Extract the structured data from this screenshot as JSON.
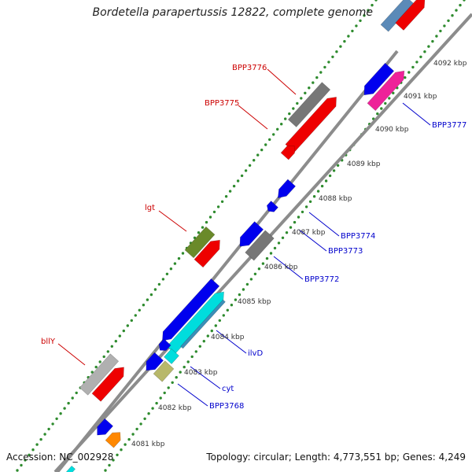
{
  "title": "Bordetella parapertussis 12822, complete genome",
  "accession": "Accession: NC_002928",
  "topology": "Topology: circular; Length: 4,773,551 bp; Genes: 4,249",
  "colors": {
    "backbone": "#8c8c8c",
    "scale_dots": "#2e8b2e",
    "forward_label": "#cc0000",
    "reverse_label": "#0000cc",
    "tick_label": "#333333"
  },
  "scale": [
    {
      "label": "4081 kbp"
    },
    {
      "label": "4082 kbp"
    },
    {
      "label": "4083 kbp"
    },
    {
      "label": "4084 kbp"
    },
    {
      "label": "4085 kbp"
    },
    {
      "label": "4086 kbp"
    },
    {
      "label": "4087 kbp"
    },
    {
      "label": "4088 kbp"
    },
    {
      "label": "4089 kbp"
    },
    {
      "label": "4090 kbp"
    },
    {
      "label": "4091 kbp"
    },
    {
      "label": "4092 kbp"
    }
  ],
  "gene_labels": [
    {
      "text": "BPP3776",
      "strand": "forward"
    },
    {
      "text": "BPP3775",
      "strand": "forward"
    },
    {
      "text": "lgt",
      "strand": "forward"
    },
    {
      "text": "bllY",
      "strand": "forward"
    },
    {
      "text": "BPP3777",
      "strand": "reverse"
    },
    {
      "text": "BPP3774",
      "strand": "reverse"
    },
    {
      "text": "BPP3773",
      "strand": "reverse"
    },
    {
      "text": "BPP3772",
      "strand": "reverse"
    },
    {
      "text": "ilvD",
      "strand": "reverse"
    },
    {
      "text": "cyt",
      "strand": "reverse"
    },
    {
      "text": "BPP3768",
      "strand": "reverse"
    }
  ]
}
